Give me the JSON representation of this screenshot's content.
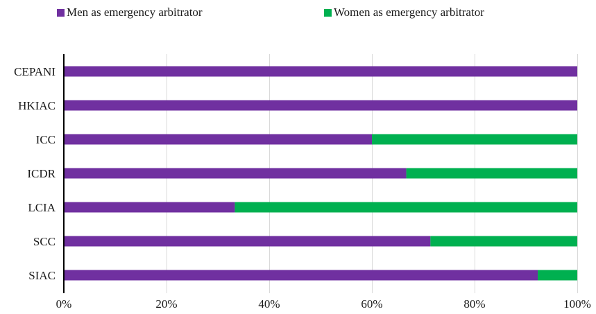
{
  "chart_data": {
    "type": "bar",
    "orientation": "horizontal",
    "stacked": true,
    "percent": true,
    "categories": [
      "CEPANI",
      "HKIAC",
      "ICC",
      "ICDR",
      "LCIA",
      "SCC",
      "SIAC"
    ],
    "series": [
      {
        "name": "Men as emergency arbitrator",
        "color": "#7030A0",
        "values": [
          100,
          100,
          60,
          66.7,
          33.3,
          71.4,
          92.3
        ]
      },
      {
        "name": "Women as emergency arbitrator",
        "color": "#00B050",
        "values": [
          0,
          0,
          40,
          33.3,
          66.7,
          28.6,
          7.7
        ]
      }
    ],
    "xlim": [
      0,
      100
    ],
    "x_ticks": [
      "0%",
      "20%",
      "40%",
      "60%",
      "80%",
      "100%"
    ],
    "grid": "vertical",
    "legend_position": "top"
  }
}
